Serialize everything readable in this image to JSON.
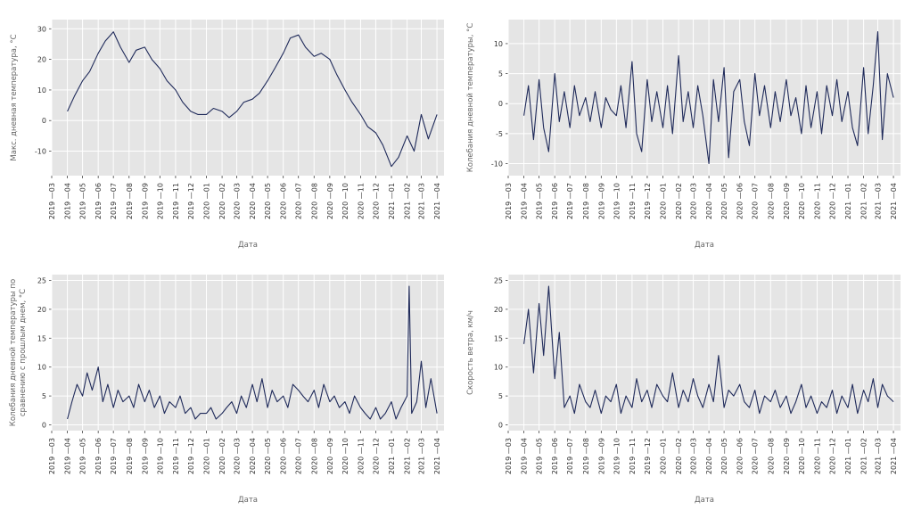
{
  "colors": {
    "line": "#1f2a5a",
    "plot_background": "#e5e5e5",
    "grid": "#ffffff"
  },
  "chart_data": [
    {
      "id": "max-temp",
      "type": "line",
      "title": "",
      "xlabel": "Дата",
      "ylabel": "Макс. дневная температура, °C",
      "ylim": [
        -18,
        33
      ],
      "yticks": [
        30,
        20,
        10,
        0,
        -10
      ],
      "xlim": [
        "2019-03-01",
        "2021-04-15"
      ],
      "xticks": [
        "2019-03",
        "2019-04",
        "2019-05",
        "2019-06",
        "2019-07",
        "2019-08",
        "2019-09",
        "2019-10",
        "2019-11",
        "2019-12",
        "2020-01",
        "2020-02",
        "2020-03",
        "2020-04",
        "2020-05",
        "2020-06",
        "2020-07",
        "2020-08",
        "2020-09",
        "2020-10",
        "2020-11",
        "2020-12",
        "2021-01",
        "2021-02",
        "2021-03",
        "2021-04"
      ],
      "grid": true,
      "x": [
        "2019-04-01",
        "2019-04-15",
        "2019-05-01",
        "2019-05-15",
        "2019-06-01",
        "2019-06-15",
        "2019-07-01",
        "2019-07-15",
        "2019-08-01",
        "2019-08-15",
        "2019-09-01",
        "2019-09-15",
        "2019-10-01",
        "2019-10-15",
        "2019-11-01",
        "2019-11-15",
        "2019-12-01",
        "2019-12-15",
        "2020-01-01",
        "2020-01-15",
        "2020-02-01",
        "2020-02-15",
        "2020-03-01",
        "2020-03-15",
        "2020-04-01",
        "2020-04-15",
        "2020-05-01",
        "2020-05-15",
        "2020-06-01",
        "2020-06-15",
        "2020-07-01",
        "2020-07-15",
        "2020-08-01",
        "2020-08-15",
        "2020-09-01",
        "2020-09-15",
        "2020-10-01",
        "2020-10-15",
        "2020-11-01",
        "2020-11-15",
        "2020-12-01",
        "2020-12-15",
        "2021-01-01",
        "2021-01-15",
        "2021-02-01",
        "2021-02-15",
        "2021-03-01",
        "2021-03-15",
        "2021-04-01"
      ],
      "values": [
        3,
        8,
        13,
        16,
        22,
        26,
        29,
        24,
        19,
        23,
        24,
        20,
        17,
        13,
        10,
        6,
        3,
        2,
        2,
        4,
        3,
        1,
        3,
        6,
        7,
        9,
        13,
        17,
        22,
        27,
        28,
        24,
        21,
        22,
        20,
        15,
        10,
        6,
        2,
        -2,
        -4,
        -8,
        -15,
        -12,
        -5,
        -10,
        2,
        -6,
        2
      ]
    },
    {
      "id": "temp-fluct",
      "type": "line",
      "title": "",
      "xlabel": "Дата",
      "ylabel": "Колебания дневной температуры, °C",
      "ylim": [
        -12,
        14
      ],
      "yticks": [
        10,
        5,
        0,
        -5,
        -10
      ],
      "xlim": [
        "2019-03-01",
        "2021-04-15"
      ],
      "xticks": [
        "2019-03",
        "2019-04",
        "2019-05",
        "2019-06",
        "2019-07",
        "2019-08",
        "2019-09",
        "2019-10",
        "2019-11",
        "2019-12",
        "2020-01",
        "2020-02",
        "2020-03",
        "2020-04",
        "2020-05",
        "2020-06",
        "2020-07",
        "2020-08",
        "2020-09",
        "2020-10",
        "2020-11",
        "2020-12",
        "2021-01",
        "2021-02",
        "2021-03",
        "2021-04"
      ],
      "grid": true,
      "x": [
        "2019-04-01",
        "2019-04-10",
        "2019-04-20",
        "2019-05-01",
        "2019-05-10",
        "2019-05-20",
        "2019-06-01",
        "2019-06-10",
        "2019-06-20",
        "2019-07-01",
        "2019-07-10",
        "2019-07-20",
        "2019-08-01",
        "2019-08-10",
        "2019-08-20",
        "2019-09-01",
        "2019-09-10",
        "2019-09-20",
        "2019-10-01",
        "2019-10-10",
        "2019-10-20",
        "2019-11-01",
        "2019-11-10",
        "2019-11-20",
        "2019-12-01",
        "2019-12-10",
        "2019-12-20",
        "2020-01-01",
        "2020-01-10",
        "2020-01-20",
        "2020-02-01",
        "2020-02-10",
        "2020-02-20",
        "2020-03-01",
        "2020-03-10",
        "2020-03-20",
        "2020-04-01",
        "2020-04-10",
        "2020-04-20",
        "2020-05-01",
        "2020-05-10",
        "2020-05-20",
        "2020-06-01",
        "2020-06-10",
        "2020-06-20",
        "2020-07-01",
        "2020-07-10",
        "2020-07-20",
        "2020-08-01",
        "2020-08-10",
        "2020-08-20",
        "2020-09-01",
        "2020-09-10",
        "2020-09-20",
        "2020-10-01",
        "2020-10-10",
        "2020-10-20",
        "2020-11-01",
        "2020-11-10",
        "2020-11-20",
        "2020-12-01",
        "2020-12-10",
        "2020-12-20",
        "2021-01-01",
        "2021-01-10",
        "2021-01-20",
        "2021-02-01",
        "2021-02-10",
        "2021-02-20",
        "2021-03-01",
        "2021-03-10",
        "2021-03-20",
        "2021-04-01"
      ],
      "values": [
        -2,
        3,
        -6,
        4,
        -4,
        -8,
        5,
        -3,
        2,
        -4,
        3,
        -2,
        1,
        -3,
        2,
        -4,
        1,
        -1,
        -2,
        3,
        -4,
        7,
        -5,
        -8,
        4,
        -3,
        2,
        -4,
        3,
        -5,
        8,
        -3,
        2,
        -4,
        3,
        -2,
        -10,
        4,
        -3,
        6,
        -9,
        2,
        4,
        -3,
        -7,
        5,
        -2,
        3,
        -4,
        2,
        -3,
        4,
        -2,
        1,
        -5,
        3,
        -4,
        2,
        -5,
        3,
        -2,
        4,
        -3,
        2,
        -4,
        -7,
        6,
        -5,
        3,
        12,
        -6,
        5,
        1
      ]
    },
    {
      "id": "temp-fluct-prev",
      "type": "line",
      "title": "",
      "xlabel": "Дата",
      "ylabel": "Колебания дневной температуры по сравнению с прошлым днем, °C",
      "ylim": [
        -1,
        26
      ],
      "yticks": [
        25,
        20,
        15,
        10,
        5,
        0
      ],
      "xlim": [
        "2019-03-01",
        "2021-04-15"
      ],
      "xticks": [
        "2019-03",
        "2019-04",
        "2019-05",
        "2019-06",
        "2019-07",
        "2019-08",
        "2019-09",
        "2019-10",
        "2019-11",
        "2019-12",
        "2020-01",
        "2020-02",
        "2020-03",
        "2020-04",
        "2020-05",
        "2020-06",
        "2020-07",
        "2020-08",
        "2020-09",
        "2020-10",
        "2020-11",
        "2020-12",
        "2021-01",
        "2021-02",
        "2021-03",
        "2021-04"
      ],
      "grid": true,
      "x": [
        "2019-04-01",
        "2019-04-10",
        "2019-04-20",
        "2019-05-01",
        "2019-05-10",
        "2019-05-20",
        "2019-06-01",
        "2019-06-10",
        "2019-06-20",
        "2019-07-01",
        "2019-07-10",
        "2019-07-20",
        "2019-08-01",
        "2019-08-10",
        "2019-08-20",
        "2019-09-01",
        "2019-09-10",
        "2019-09-20",
        "2019-10-01",
        "2019-10-10",
        "2019-10-20",
        "2019-11-01",
        "2019-11-10",
        "2019-11-20",
        "2019-12-01",
        "2019-12-10",
        "2019-12-20",
        "2020-01-01",
        "2020-01-10",
        "2020-01-20",
        "2020-02-01",
        "2020-02-10",
        "2020-02-20",
        "2020-03-01",
        "2020-03-10",
        "2020-03-20",
        "2020-04-01",
        "2020-04-10",
        "2020-04-20",
        "2020-05-01",
        "2020-05-10",
        "2020-05-20",
        "2020-06-01",
        "2020-06-10",
        "2020-06-20",
        "2020-07-01",
        "2020-07-10",
        "2020-07-20",
        "2020-08-01",
        "2020-08-10",
        "2020-08-20",
        "2020-09-01",
        "2020-09-10",
        "2020-09-20",
        "2020-10-01",
        "2020-10-10",
        "2020-10-20",
        "2020-11-01",
        "2020-11-10",
        "2020-11-20",
        "2020-12-01",
        "2020-12-10",
        "2020-12-20",
        "2021-01-01",
        "2021-01-10",
        "2021-01-20",
        "2021-02-01",
        "2021-02-05",
        "2021-02-10",
        "2021-02-20",
        "2021-03-01",
        "2021-03-10",
        "2021-03-20",
        "2021-04-01"
      ],
      "values": [
        1,
        4,
        7,
        5,
        9,
        6,
        10,
        4,
        7,
        3,
        6,
        4,
        5,
        3,
        7,
        4,
        6,
        3,
        5,
        2,
        4,
        3,
        5,
        2,
        3,
        1,
        2,
        2,
        3,
        1,
        2,
        3,
        4,
        2,
        5,
        3,
        7,
        4,
        8,
        3,
        6,
        4,
        5,
        3,
        7,
        6,
        5,
        4,
        6,
        3,
        7,
        4,
        5,
        3,
        4,
        2,
        5,
        3,
        2,
        1,
        3,
        1,
        2,
        4,
        1,
        3,
        5,
        24,
        2,
        4,
        11,
        3,
        8,
        2
      ]
    },
    {
      "id": "wind-speed",
      "type": "line",
      "title": "",
      "xlabel": "Дата",
      "ylabel": "Скорость ветра, км/ч",
      "ylim": [
        -1,
        26
      ],
      "yticks": [
        25,
        20,
        15,
        10,
        5,
        0
      ],
      "xlim": [
        "2019-03-01",
        "2021-04-15"
      ],
      "xticks": [
        "2019-03",
        "2019-04",
        "2019-05",
        "2019-06",
        "2019-07",
        "2019-08",
        "2019-09",
        "2019-10",
        "2019-11",
        "2019-12",
        "2020-01",
        "2020-02",
        "2020-03",
        "2020-04",
        "2020-05",
        "2020-06",
        "2020-07",
        "2020-08",
        "2020-09",
        "2020-10",
        "2020-11",
        "2020-12",
        "2021-01",
        "2021-02",
        "2021-03",
        "2021-04"
      ],
      "grid": true,
      "x": [
        "2019-04-01",
        "2019-04-10",
        "2019-04-20",
        "2019-05-01",
        "2019-05-10",
        "2019-05-20",
        "2019-06-01",
        "2019-06-10",
        "2019-06-20",
        "2019-07-01",
        "2019-07-10",
        "2019-07-20",
        "2019-08-01",
        "2019-08-10",
        "2019-08-20",
        "2019-09-01",
        "2019-09-10",
        "2019-09-20",
        "2019-10-01",
        "2019-10-10",
        "2019-10-20",
        "2019-11-01",
        "2019-11-10",
        "2019-11-20",
        "2019-12-01",
        "2019-12-10",
        "2019-12-20",
        "2020-01-01",
        "2020-01-10",
        "2020-01-20",
        "2020-02-01",
        "2020-02-10",
        "2020-02-20",
        "2020-03-01",
        "2020-03-10",
        "2020-03-20",
        "2020-04-01",
        "2020-04-10",
        "2020-04-20",
        "2020-05-01",
        "2020-05-10",
        "2020-05-20",
        "2020-06-01",
        "2020-06-10",
        "2020-06-20",
        "2020-07-01",
        "2020-07-10",
        "2020-07-20",
        "2020-08-01",
        "2020-08-10",
        "2020-08-20",
        "2020-09-01",
        "2020-09-10",
        "2020-09-20",
        "2020-10-01",
        "2020-10-10",
        "2020-10-20",
        "2020-11-01",
        "2020-11-10",
        "2020-11-20",
        "2020-12-01",
        "2020-12-10",
        "2020-12-20",
        "2021-01-01",
        "2021-01-10",
        "2021-01-20",
        "2021-02-01",
        "2021-02-10",
        "2021-02-20",
        "2021-03-01",
        "2021-03-10",
        "2021-03-20",
        "2021-04-01"
      ],
      "values": [
        14,
        20,
        9,
        21,
        12,
        24,
        8,
        16,
        3,
        5,
        2,
        7,
        4,
        3,
        6,
        2,
        5,
        4,
        7,
        2,
        5,
        3,
        8,
        4,
        6,
        3,
        7,
        5,
        4,
        9,
        3,
        6,
        4,
        8,
        5,
        3,
        7,
        4,
        12,
        3,
        6,
        5,
        7,
        4,
        3,
        6,
        2,
        5,
        4,
        6,
        3,
        5,
        2,
        4,
        7,
        3,
        5,
        2,
        4,
        3,
        6,
        2,
        5,
        3,
        7,
        2,
        6,
        4,
        8,
        3,
        7,
        5,
        4
      ]
    }
  ]
}
